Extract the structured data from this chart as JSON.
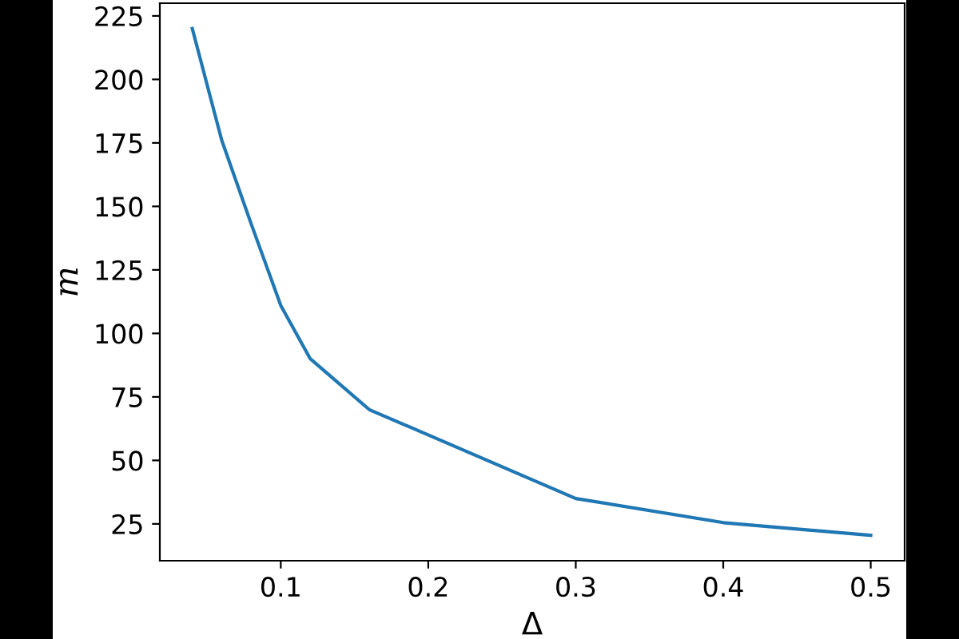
{
  "chart_data": {
    "type": "line",
    "xlabel": "Δ",
    "ylabel": "m",
    "x": [
      0.04,
      0.06,
      0.08,
      0.1,
      0.12,
      0.16,
      0.3,
      0.4,
      0.5
    ],
    "series": [
      {
        "color": "#1f77b4",
        "values": [
          220,
          176,
          143,
          111,
          90,
          70,
          35,
          25.5,
          20.5
        ]
      }
    ],
    "xlim": [
      0.018,
      0.523
    ],
    "ylim": [
      10.5,
      230
    ],
    "xticks": [
      0.1,
      0.2,
      0.3,
      0.4,
      0.5
    ],
    "yticks": [
      25,
      50,
      75,
      100,
      125,
      150,
      175,
      200,
      225
    ],
    "grid": false,
    "legend": false,
    "marker": "none",
    "line_style": "solid"
  }
}
